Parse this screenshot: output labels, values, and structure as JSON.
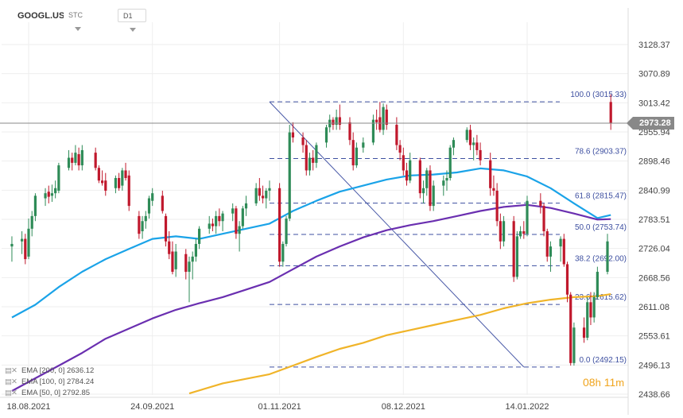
{
  "header": {
    "symbol": "GOOGL.US",
    "chart_type": "STC",
    "interval": "D1"
  },
  "current_price": "2973.28",
  "timer": {
    "hours": "08",
    "h": "h",
    "minutes": "11",
    "m": "m"
  },
  "legend": [
    {
      "label": "EMA [200, 0]",
      "value": "2636.12"
    },
    {
      "label": "EMA [100, 0]",
      "value": "2784.24"
    },
    {
      "label": "EMA [50, 0]",
      "value": "2792.85"
    }
  ],
  "colors": {
    "bull": "#2e8b57",
    "bear": "#c0182c",
    "ema50": "#1aa3e8",
    "ema100": "#6a2fb0",
    "ema200": "#f0b429",
    "fib": "#3d4fa0",
    "trend": "#4a5aa8",
    "price_line": "#888888"
  },
  "chart_data": {
    "type": "candlestick",
    "y_ticks": [
      "3128.37",
      "3070.89",
      "3013.42",
      "2955.94",
      "2898.46",
      "2840.99",
      "2783.51",
      "2726.04",
      "2668.56",
      "2611.08",
      "2553.61",
      "2496.13",
      "2438.66"
    ],
    "x_ticks": [
      "18.08.2021",
      "24.09.2021",
      "01.11.2021",
      "08.12.2021",
      "14.01.2022"
    ],
    "ylim": [
      2430,
      3165
    ],
    "fib_levels": [
      {
        "label": "100.0 (3015.33)",
        "value": 3015.33
      },
      {
        "label": "78.6 (2903.37)",
        "value": 2903.37
      },
      {
        "label": "61.8 (2815.47)",
        "value": 2815.47
      },
      {
        "label": "50.0 (2753.74)",
        "value": 2753.74
      },
      {
        "label": "38.2 (2692.00)",
        "value": 2692.0
      },
      {
        "label": "23.6 (2615.62)",
        "value": 2615.62
      },
      {
        "label": "0.0 (2492.15)",
        "value": 2492.15
      }
    ],
    "trendline": {
      "from": {
        "date": "2021-10-29",
        "value": 3015.33
      },
      "to": {
        "date": "2022-01-13",
        "value": 2492.15
      }
    },
    "candles": [
      [
        "2021-08-13",
        2730,
        2750,
        2700,
        2735
      ],
      [
        "2021-08-16",
        2740,
        2760,
        2715,
        2745
      ],
      [
        "2021-08-17",
        2745,
        2755,
        2695,
        2705
      ],
      [
        "2021-08-18",
        2710,
        2785,
        2705,
        2765
      ],
      [
        "2021-08-19",
        2765,
        2800,
        2750,
        2790
      ],
      [
        "2021-08-20",
        2790,
        2835,
        2780,
        2830
      ],
      [
        "2021-08-23",
        2825,
        2845,
        2810,
        2835
      ],
      [
        "2021-08-24",
        2838,
        2850,
        2815,
        2828
      ],
      [
        "2021-08-25",
        2830,
        2852,
        2818,
        2835
      ],
      [
        "2021-08-26",
        2835,
        2860,
        2825,
        2845
      ],
      [
        "2021-08-27",
        2840,
        2895,
        2835,
        2890
      ],
      [
        "2021-08-30",
        2885,
        2920,
        2880,
        2905
      ],
      [
        "2021-08-31",
        2905,
        2915,
        2880,
        2895
      ],
      [
        "2021-09-01",
        2895,
        2930,
        2890,
        2915
      ],
      [
        "2021-09-02",
        2912,
        2925,
        2880,
        2890
      ],
      [
        "2021-09-03",
        2890,
        2930,
        2880,
        2920
      ],
      [
        "2021-09-07",
        2915,
        2925,
        2880,
        2885
      ],
      [
        "2021-09-08",
        2885,
        2890,
        2855,
        2860
      ],
      [
        "2021-09-09",
        2860,
        2880,
        2850,
        2855
      ],
      [
        "2021-09-10",
        2860,
        2875,
        2830,
        2840
      ],
      [
        "2021-09-13",
        2845,
        2870,
        2835,
        2865
      ],
      [
        "2021-09-14",
        2865,
        2875,
        2840,
        2845
      ],
      [
        "2021-09-15",
        2850,
        2885,
        2840,
        2880
      ],
      [
        "2021-09-16",
        2880,
        2895,
        2860,
        2865
      ],
      [
        "2021-09-17",
        2870,
        2880,
        2800,
        2810
      ],
      [
        "2021-09-20",
        2790,
        2800,
        2745,
        2755
      ],
      [
        "2021-09-21",
        2760,
        2790,
        2745,
        2780
      ],
      [
        "2021-09-22",
        2780,
        2800,
        2765,
        2790
      ],
      [
        "2021-09-23",
        2795,
        2830,
        2785,
        2825
      ],
      [
        "2021-09-24",
        2820,
        2845,
        2810,
        2835
      ],
      [
        "2021-09-27",
        2830,
        2840,
        2795,
        2800
      ],
      [
        "2021-09-28",
        2790,
        2795,
        2730,
        2740
      ],
      [
        "2021-09-29",
        2740,
        2760,
        2705,
        2715
      ],
      [
        "2021-09-30",
        2720,
        2740,
        2675,
        2680
      ],
      [
        "2021-10-01",
        2685,
        2735,
        2670,
        2720
      ],
      [
        "2021-10-04",
        2715,
        2725,
        2665,
        2680
      ],
      [
        "2021-10-05",
        2680,
        2710,
        2620,
        2700
      ],
      [
        "2021-10-06",
        2700,
        2720,
        2665,
        2710
      ],
      [
        "2021-10-07",
        2710,
        2745,
        2700,
        2735
      ],
      [
        "2021-10-08",
        2735,
        2770,
        2725,
        2765
      ],
      [
        "2021-10-11",
        2765,
        2790,
        2755,
        2775
      ],
      [
        "2021-10-12",
        2775,
        2785,
        2760,
        2770
      ],
      [
        "2021-10-13",
        2770,
        2800,
        2755,
        2790
      ],
      [
        "2021-10-14",
        2790,
        2805,
        2770,
        2780
      ],
      [
        "2021-10-15",
        2780,
        2800,
        2760,
        2795
      ],
      [
        "2021-10-18",
        2795,
        2815,
        2780,
        2805
      ],
      [
        "2021-10-19",
        2805,
        2810,
        2745,
        2755
      ],
      [
        "2021-10-20",
        2755,
        2780,
        2720,
        2770
      ],
      [
        "2021-10-21",
        2770,
        2810,
        2765,
        2805
      ],
      [
        "2021-10-22",
        2805,
        2830,
        2790,
        2815
      ],
      [
        "2021-10-25",
        2815,
        2855,
        2810,
        2845
      ],
      [
        "2021-10-26",
        2845,
        2865,
        2820,
        2830
      ],
      [
        "2021-10-27",
        2830,
        2850,
        2815,
        2825
      ],
      [
        "2021-10-28",
        2825,
        2845,
        2805,
        2840
      ],
      [
        "2021-10-29",
        2840,
        2860,
        2820,
        2845
      ],
      [
        "2021-11-01",
        2845,
        2855,
        2690,
        2700
      ],
      [
        "2021-11-02",
        2700,
        2740,
        2690,
        2735
      ],
      [
        "2021-11-03",
        2735,
        2790,
        2730,
        2785
      ],
      [
        "2021-11-04",
        2785,
        2970,
        2780,
        2955
      ],
      [
        "2021-11-05",
        2955,
        2975,
        2935,
        2945
      ],
      [
        "2021-11-08",
        2945,
        2955,
        2915,
        2930
      ],
      [
        "2021-11-09",
        2930,
        2940,
        2870,
        2880
      ],
      [
        "2021-11-10",
        2880,
        2915,
        2870,
        2905
      ],
      [
        "2021-11-11",
        2905,
        2920,
        2880,
        2895
      ],
      [
        "2021-11-12",
        2895,
        2935,
        2885,
        2930
      ],
      [
        "2021-11-15",
        2935,
        2970,
        2925,
        2965
      ],
      [
        "2021-11-16",
        2965,
        2990,
        2955,
        2980
      ],
      [
        "2021-11-17",
        2980,
        2985,
        2960,
        2970
      ],
      [
        "2021-11-18",
        2970,
        3000,
        2960,
        2985
      ],
      [
        "2021-11-19",
        2985,
        3010,
        2960,
        2970
      ],
      [
        "2021-11-22",
        2975,
        2985,
        2930,
        2940
      ],
      [
        "2021-11-23",
        2940,
        2955,
        2880,
        2890
      ],
      [
        "2021-11-24",
        2890,
        2935,
        2885,
        2925
      ],
      [
        "2021-11-26",
        2925,
        2945,
        2915,
        2935
      ],
      [
        "2021-11-29",
        2935,
        2990,
        2930,
        2980
      ],
      [
        "2021-11-30",
        2980,
        3000,
        2960,
        2975
      ],
      [
        "2021-12-01",
        2985,
        3015,
        2955,
        2960
      ],
      [
        "2021-12-02",
        2960,
        3012,
        2950,
        3005
      ],
      [
        "2021-12-03",
        3000,
        3010,
        2960,
        2970
      ],
      [
        "2021-12-06",
        2970,
        2985,
        2920,
        2930
      ],
      [
        "2021-12-07",
        2930,
        2940,
        2900,
        2915
      ],
      [
        "2021-12-08",
        2910,
        2925,
        2870,
        2880
      ],
      [
        "2021-12-09",
        2880,
        2895,
        2850,
        2860
      ],
      [
        "2021-12-10",
        2860,
        2915,
        2855,
        2900
      ],
      [
        "2021-12-13",
        2900,
        2905,
        2825,
        2835
      ],
      [
        "2021-12-14",
        2835,
        2860,
        2815,
        2845
      ],
      [
        "2021-12-15",
        2845,
        2885,
        2830,
        2880
      ],
      [
        "2021-12-16",
        2880,
        2890,
        2800,
        2810
      ],
      [
        "2021-12-17",
        2810,
        2860,
        2800,
        2850
      ],
      [
        "2021-12-20",
        2850,
        2870,
        2830,
        2860
      ],
      [
        "2021-12-21",
        2860,
        2880,
        2840,
        2865
      ],
      [
        "2021-12-22",
        2865,
        2930,
        2860,
        2925
      ],
      [
        "2021-12-23",
        2925,
        2945,
        2910,
        2940
      ],
      [
        "2021-12-27",
        2940,
        2965,
        2935,
        2960
      ],
      [
        "2021-12-28",
        2960,
        2970,
        2920,
        2930
      ],
      [
        "2021-12-29",
        2930,
        2945,
        2900,
        2935
      ],
      [
        "2021-12-30",
        2935,
        2950,
        2910,
        2920
      ],
      [
        "2021-12-31",
        2920,
        2935,
        2890,
        2900
      ],
      [
        "2022-01-03",
        2900,
        2915,
        2830,
        2845
      ],
      [
        "2022-01-04",
        2845,
        2870,
        2830,
        2840
      ],
      [
        "2022-01-05",
        2840,
        2855,
        2770,
        2780
      ],
      [
        "2022-01-06",
        2780,
        2795,
        2725,
        2740
      ],
      [
        "2022-01-07",
        2740,
        2790,
        2730,
        2780
      ],
      [
        "2022-01-10",
        2780,
        2790,
        2660,
        2670
      ],
      [
        "2022-01-11",
        2670,
        2760,
        2665,
        2750
      ],
      [
        "2022-01-12",
        2750,
        2770,
        2745,
        2760
      ],
      [
        "2022-01-13",
        2760,
        2780,
        2745,
        2755
      ],
      [
        "2022-01-14",
        2755,
        2830,
        2750,
        2820
      ],
      [
        "2022-01-18",
        2820,
        2835,
        2795,
        2810
      ],
      [
        "2022-01-19",
        2810,
        2815,
        2750,
        2760
      ],
      [
        "2022-01-20",
        2760,
        2765,
        2700,
        2710
      ],
      [
        "2022-01-21",
        2710,
        2740,
        2680,
        2730
      ],
      [
        "2022-01-24",
        2730,
        2750,
        2700,
        2745
      ],
      [
        "2022-01-25",
        2745,
        2755,
        2690,
        2695
      ],
      [
        "2022-01-26",
        2695,
        2700,
        2620,
        2635
      ],
      [
        "2022-01-27",
        2635,
        2640,
        2495,
        2500
      ],
      [
        "2022-01-28",
        2500,
        2580,
        2495,
        2570
      ],
      [
        "2022-01-31",
        2570,
        2590,
        2540,
        2550
      ],
      [
        "2022-02-01",
        2550,
        2630,
        2545,
        2620
      ],
      [
        "2022-02-02",
        2620,
        2640,
        2575,
        2590
      ],
      [
        "2022-02-03",
        2590,
        2640,
        2580,
        2630
      ],
      [
        "2022-02-04",
        2630,
        2690,
        2625,
        2680
      ],
      [
        "2022-02-07",
        2680,
        2755,
        2675,
        2740
      ],
      [
        "2022-02-08",
        3015,
        3030,
        2960,
        2973
      ]
    ],
    "ema50": [
      [
        "2021-08-13",
        2590
      ],
      [
        "2021-08-20",
        2615
      ],
      [
        "2021-08-27",
        2650
      ],
      [
        "2021-09-03",
        2680
      ],
      [
        "2021-09-10",
        2705
      ],
      [
        "2021-09-17",
        2725
      ],
      [
        "2021-09-24",
        2745
      ],
      [
        "2021-10-01",
        2750
      ],
      [
        "2021-10-08",
        2745
      ],
      [
        "2021-10-15",
        2755
      ],
      [
        "2021-10-22",
        2765
      ],
      [
        "2021-10-29",
        2775
      ],
      [
        "2021-11-05",
        2800
      ],
      [
        "2021-11-12",
        2820
      ],
      [
        "2021-11-19",
        2838
      ],
      [
        "2021-11-26",
        2850
      ],
      [
        "2021-12-03",
        2862
      ],
      [
        "2021-12-10",
        2870
      ],
      [
        "2021-12-17",
        2872
      ],
      [
        "2021-12-24",
        2876
      ],
      [
        "2021-12-31",
        2884
      ],
      [
        "2022-01-07",
        2880
      ],
      [
        "2022-01-14",
        2868
      ],
      [
        "2022-01-21",
        2845
      ],
      [
        "2022-01-28",
        2815
      ],
      [
        "2022-02-04",
        2786
      ],
      [
        "2022-02-08",
        2792
      ]
    ],
    "ema100": [
      [
        "2021-08-13",
        2445
      ],
      [
        "2021-08-20",
        2470
      ],
      [
        "2021-08-27",
        2495
      ],
      [
        "2021-09-03",
        2520
      ],
      [
        "2021-09-10",
        2548
      ],
      [
        "2021-09-17",
        2568
      ],
      [
        "2021-09-24",
        2588
      ],
      [
        "2021-10-01",
        2605
      ],
      [
        "2021-10-08",
        2618
      ],
      [
        "2021-10-15",
        2630
      ],
      [
        "2021-10-22",
        2645
      ],
      [
        "2021-10-29",
        2660
      ],
      [
        "2021-11-05",
        2685
      ],
      [
        "2021-11-12",
        2710
      ],
      [
        "2021-11-19",
        2730
      ],
      [
        "2021-11-26",
        2748
      ],
      [
        "2021-12-03",
        2762
      ],
      [
        "2021-12-10",
        2772
      ],
      [
        "2021-12-17",
        2780
      ],
      [
        "2021-12-24",
        2790
      ],
      [
        "2021-12-31",
        2800
      ],
      [
        "2022-01-07",
        2808
      ],
      [
        "2022-01-14",
        2812
      ],
      [
        "2022-01-21",
        2806
      ],
      [
        "2022-01-28",
        2795
      ],
      [
        "2022-02-04",
        2783
      ],
      [
        "2022-02-08",
        2784
      ]
    ],
    "ema200": [
      [
        "2021-10-05",
        2440
      ],
      [
        "2021-10-15",
        2460
      ],
      [
        "2021-10-29",
        2478
      ],
      [
        "2021-11-05",
        2495
      ],
      [
        "2021-11-12",
        2512
      ],
      [
        "2021-11-19",
        2528
      ],
      [
        "2021-11-26",
        2540
      ],
      [
        "2021-12-03",
        2555
      ],
      [
        "2021-12-10",
        2565
      ],
      [
        "2021-12-17",
        2575
      ],
      [
        "2021-12-24",
        2585
      ],
      [
        "2021-12-31",
        2595
      ],
      [
        "2022-01-07",
        2608
      ],
      [
        "2022-01-14",
        2618
      ],
      [
        "2022-01-21",
        2625
      ],
      [
        "2022-01-28",
        2630
      ],
      [
        "2022-02-04",
        2632
      ],
      [
        "2022-02-08",
        2636
      ]
    ]
  }
}
